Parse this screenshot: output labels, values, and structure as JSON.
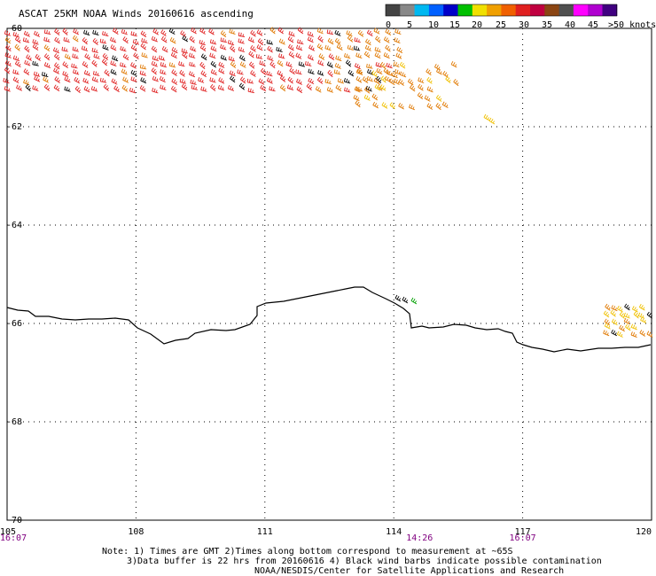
{
  "title": "ASCAT 25KM NOAA Winds 20160616 ascending",
  "legend": {
    "unit": ">50 knots",
    "labels": [
      "0",
      "5",
      "10",
      "15",
      "20",
      "25",
      "30",
      "35",
      "40",
      "45"
    ],
    "colors": [
      "#444444",
      "#888888",
      "#00b8f0",
      "#0060ff",
      "#0000c8",
      "#00c000",
      "#f0e000",
      "#f0a000",
      "#f06000",
      "#e02020",
      "#c00040",
      "#8b4513",
      "#505050",
      "#ff00ff",
      "#b000d0",
      "#400080"
    ]
  },
  "axes": {
    "lon_ticks": [
      "105",
      "108",
      "111",
      "114",
      "117",
      "120"
    ],
    "lat_ticks": [
      "-60",
      "-62",
      "-64",
      "-66",
      "-68",
      "-70"
    ],
    "lon_range": [
      105,
      120
    ],
    "lat_range": [
      -70,
      -60
    ]
  },
  "time_labels": [
    {
      "lon": 105,
      "text": "16:07"
    },
    {
      "lon": 114.6,
      "text": "14:26"
    },
    {
      "lon": 117,
      "text": "16:07"
    }
  ],
  "notes": [
    "Note: 1) Times are GMT 2)Times along bottom correspond to measurement at ~65S",
    "3)Data buffer is 22 hrs from 20160616 4) Black wind barbs indicate possible contamination",
    "NOAA/NESDIS/Center for Satellite Applications and Research"
  ],
  "colors": {
    "time_label": "#800080",
    "red_barbs": "#e02020",
    "orange_barbs": "#e07800",
    "yellow_barbs": "#f0c000",
    "black_barbs": "#000000"
  }
}
